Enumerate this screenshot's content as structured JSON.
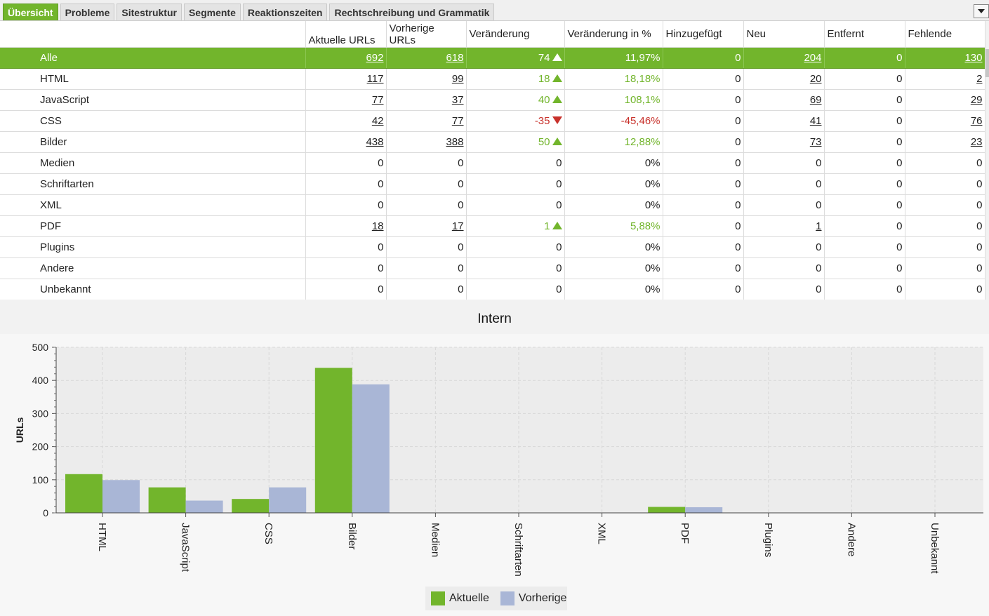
{
  "tabs": [
    {
      "label": "Übersicht",
      "active": true
    },
    {
      "label": "Probleme",
      "active": false
    },
    {
      "label": "Sitestruktur",
      "active": false
    },
    {
      "label": "Segmente",
      "active": false
    },
    {
      "label": "Reaktionszeiten",
      "active": false
    },
    {
      "label": "Rechtschreibung und Grammatik",
      "active": false
    }
  ],
  "table": {
    "columns": [
      "",
      "Aktuelle URLs",
      "Vorherige URLs",
      "Veränderung",
      "Veränderung in %",
      "Hinzugefügt",
      "Neu",
      "Entfernt",
      "Fehlende"
    ],
    "rows": [
      {
        "name": "Alle",
        "current": "692",
        "previous": "618",
        "change": "74",
        "trend": "up",
        "change_pct": "11,97%",
        "added": "0",
        "new": "204",
        "removed": "0",
        "missing": "130",
        "selected": true
      },
      {
        "name": "HTML",
        "current": "117",
        "previous": "99",
        "change": "18",
        "trend": "up",
        "change_pct": "18,18%",
        "added": "0",
        "new": "20",
        "removed": "0",
        "missing": "2"
      },
      {
        "name": "JavaScript",
        "current": "77",
        "previous": "37",
        "change": "40",
        "trend": "up",
        "change_pct": "108,1%",
        "added": "0",
        "new": "69",
        "removed": "0",
        "missing": "29"
      },
      {
        "name": "CSS",
        "current": "42",
        "previous": "77",
        "change": "-35",
        "trend": "down",
        "change_pct": "-45,46%",
        "added": "0",
        "new": "41",
        "removed": "0",
        "missing": "76"
      },
      {
        "name": "Bilder",
        "current": "438",
        "previous": "388",
        "change": "50",
        "trend": "up",
        "change_pct": "12,88%",
        "added": "0",
        "new": "73",
        "removed": "0",
        "missing": "23"
      },
      {
        "name": "Medien",
        "current": "0",
        "previous": "0",
        "change": "0",
        "trend": "none",
        "change_pct": "0%",
        "added": "0",
        "new": "0",
        "removed": "0",
        "missing": "0"
      },
      {
        "name": "Schriftarten",
        "current": "0",
        "previous": "0",
        "change": "0",
        "trend": "none",
        "change_pct": "0%",
        "added": "0",
        "new": "0",
        "removed": "0",
        "missing": "0"
      },
      {
        "name": "XML",
        "current": "0",
        "previous": "0",
        "change": "0",
        "trend": "none",
        "change_pct": "0%",
        "added": "0",
        "new": "0",
        "removed": "0",
        "missing": "0"
      },
      {
        "name": "PDF",
        "current": "18",
        "previous": "17",
        "change": "1",
        "trend": "up",
        "change_pct": "5,88%",
        "added": "0",
        "new": "1",
        "removed": "0",
        "missing": "0"
      },
      {
        "name": "Plugins",
        "current": "0",
        "previous": "0",
        "change": "0",
        "trend": "none",
        "change_pct": "0%",
        "added": "0",
        "new": "0",
        "removed": "0",
        "missing": "0"
      },
      {
        "name": "Andere",
        "current": "0",
        "previous": "0",
        "change": "0",
        "trend": "none",
        "change_pct": "0%",
        "added": "0",
        "new": "0",
        "removed": "0",
        "missing": "0"
      },
      {
        "name": "Unbekannt",
        "current": "0",
        "previous": "0",
        "change": "0",
        "trend": "none",
        "change_pct": "0%",
        "added": "0",
        "new": "0",
        "removed": "0",
        "missing": "0"
      }
    ]
  },
  "colors": {
    "accent": "#72b52c",
    "previous": "#a9b6d6",
    "negative": "#c8312b"
  },
  "chart_data": {
    "type": "bar",
    "title": "Intern",
    "xlabel": "",
    "ylabel": "URLs",
    "ylim": [
      0,
      500
    ],
    "yticks": [
      0,
      100,
      200,
      300,
      400,
      500
    ],
    "grid": true,
    "legend": "bottom-center",
    "categories": [
      "HTML",
      "JavaScript",
      "CSS",
      "Bilder",
      "Medien",
      "Schriftarten",
      "XML",
      "PDF",
      "Plugins",
      "Andere",
      "Unbekannt"
    ],
    "series": [
      {
        "name": "Aktuelle",
        "color": "#72b52c",
        "values": [
          117,
          77,
          42,
          438,
          0,
          0,
          0,
          18,
          0,
          0,
          0
        ]
      },
      {
        "name": "Vorherige",
        "color": "#a9b6d6",
        "values": [
          99,
          37,
          77,
          388,
          0,
          0,
          0,
          17,
          0,
          0,
          0
        ]
      }
    ]
  }
}
